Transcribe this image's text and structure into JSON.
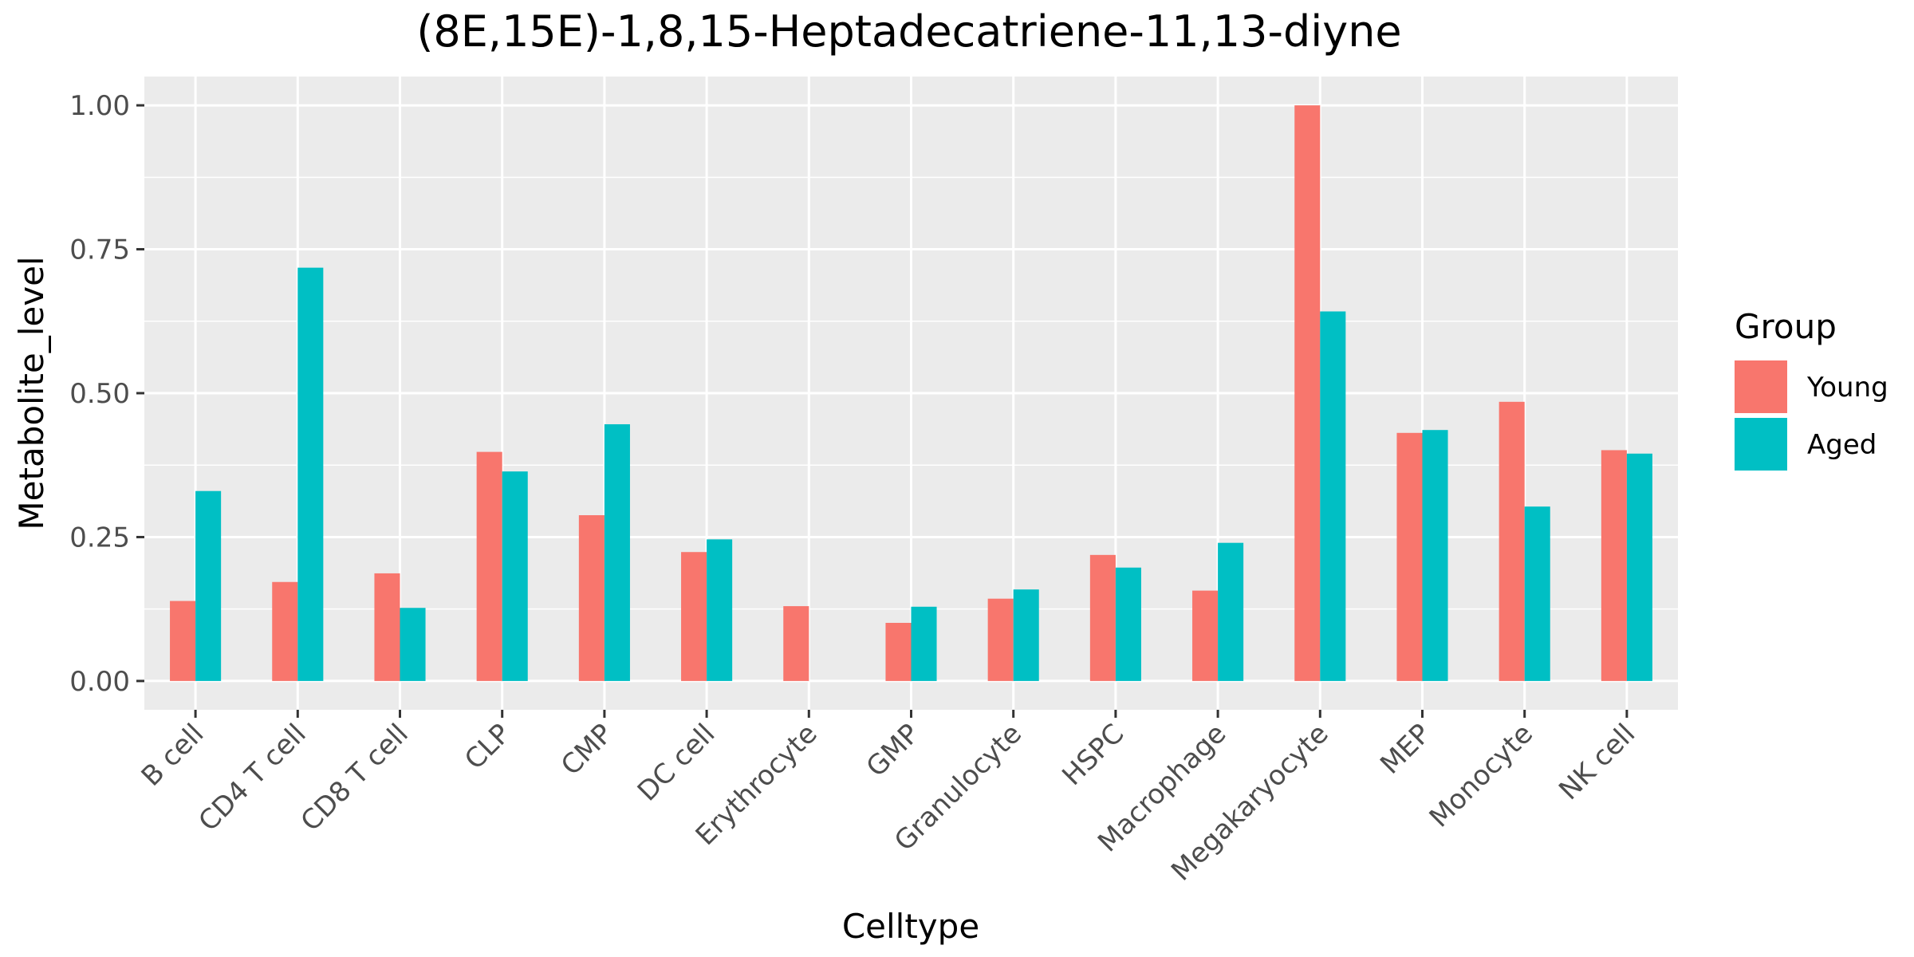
{
  "chart_data": {
    "type": "bar",
    "title": "(8E,15E)-1,8,15-Heptadecatriene-11,13-diyne",
    "xlabel": "Celltype",
    "ylabel": "Metabolite_level",
    "ylim": [
      -0.05,
      1.05
    ],
    "yticks": [
      0.0,
      0.25,
      0.5,
      0.75,
      1.0
    ],
    "ytick_labels": [
      "0.00",
      "0.25",
      "0.50",
      "0.75",
      "1.00"
    ],
    "categories": [
      "B cell",
      "CD4 T cell",
      "CD8 T cell",
      "CLP",
      "CMP",
      "DC cell",
      "Erythrocyte",
      "GMP",
      "Granulocyte",
      "HSPC",
      "Macrophage",
      "Megakaryocyte",
      "MEP",
      "Monocyte",
      "NK cell"
    ],
    "series": [
      {
        "name": "Young",
        "color": "#F8766D",
        "values": [
          0.139,
          0.172,
          0.187,
          0.398,
          0.288,
          0.224,
          0.13,
          0.101,
          0.143,
          0.219,
          0.157,
          1.0,
          0.431,
          0.485,
          0.401
        ]
      },
      {
        "name": "Aged",
        "color": "#00BFC4",
        "values": [
          0.33,
          0.718,
          0.127,
          0.364,
          0.446,
          0.246,
          0.0,
          0.129,
          0.159,
          0.197,
          0.24,
          0.642,
          0.436,
          0.303,
          0.395
        ]
      }
    ],
    "legend": {
      "title": "Group",
      "position": "right"
    },
    "grid": true
  }
}
